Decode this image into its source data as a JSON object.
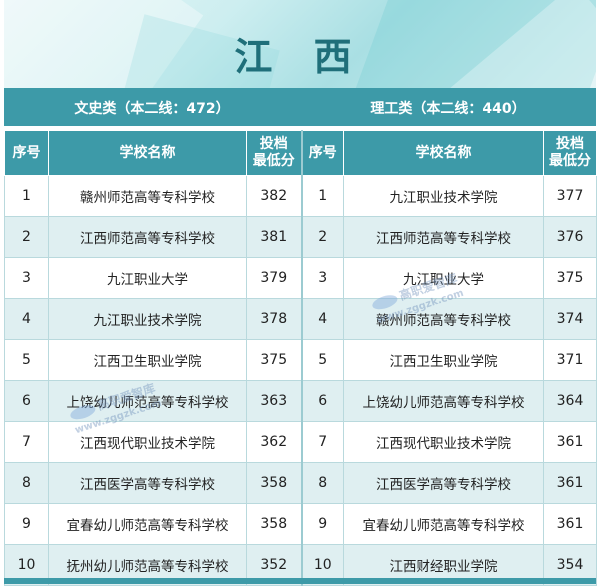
{
  "title": "江 西",
  "left_section": "文史类（本二线：472）",
  "right_section": "理工类（本二线：440）",
  "headers": {
    "index": "序号",
    "school": "学校名称",
    "score_line1": "投档",
    "score_line2": "最低分"
  },
  "left_rows": [
    {
      "no": "1",
      "school": "赣州师范高等专科学校",
      "score": "382"
    },
    {
      "no": "2",
      "school": "江西师范高等专科学校",
      "score": "381"
    },
    {
      "no": "3",
      "school": "九江职业大学",
      "score": "379"
    },
    {
      "no": "4",
      "school": "九江职业技术学院",
      "score": "378"
    },
    {
      "no": "5",
      "school": "江西卫生职业学院",
      "score": "375"
    },
    {
      "no": "6",
      "school": "上饶幼儿师范高等专科学校",
      "score": "363"
    },
    {
      "no": "7",
      "school": "江西现代职业技术学院",
      "score": "362"
    },
    {
      "no": "8",
      "school": "江西医学高等专科学校",
      "score": "358"
    },
    {
      "no": "9",
      "school": "宜春幼儿师范高等专科学校",
      "score": "358"
    },
    {
      "no": "10",
      "school": "抚州幼儿师范高等专科学校",
      "score": "352"
    }
  ],
  "right_rows": [
    {
      "no": "1",
      "school": "九江职业技术学院",
      "score": "377"
    },
    {
      "no": "2",
      "school": "江西师范高等专科学校",
      "score": "376"
    },
    {
      "no": "3",
      "school": "九江职业大学",
      "score": "375"
    },
    {
      "no": "4",
      "school": "赣州师范高等专科学校",
      "score": "374"
    },
    {
      "no": "5",
      "school": "江西卫生职业学院",
      "score": "371"
    },
    {
      "no": "6",
      "school": "上饶幼儿师范高等专科学校",
      "score": "364"
    },
    {
      "no": "7",
      "school": "江西现代职业技术学院",
      "score": "361"
    },
    {
      "no": "8",
      "school": "江西医学高等专科学校",
      "score": "361"
    },
    {
      "no": "9",
      "school": "宜春幼儿师范高等专科学校",
      "score": "361"
    },
    {
      "no": "10",
      "school": "江西财经职业学院",
      "score": "354"
    }
  ],
  "watermark": {
    "name": "高职爱智库",
    "site": "www.zggzk.com"
  }
}
